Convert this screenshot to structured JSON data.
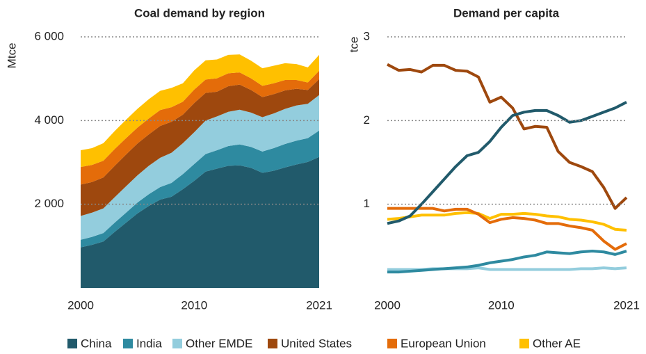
{
  "chart_data": [
    {
      "type": "stacked-area",
      "title": "Coal demand by region",
      "ylabel": "Mtce",
      "x": [
        2000,
        2001,
        2002,
        2003,
        2004,
        2005,
        2006,
        2007,
        2008,
        2009,
        2010,
        2011,
        2012,
        2013,
        2014,
        2015,
        2016,
        2017,
        2018,
        2019,
        2020,
        2021
      ],
      "xlim": [
        2000,
        2021
      ],
      "xticks": [
        2000,
        2010,
        2021
      ],
      "ylim": [
        0,
        6000
      ],
      "yticks": [
        {
          "value": 2000,
          "label": "2 000"
        },
        {
          "value": 4000,
          "label": "4 000"
        },
        {
          "value": 6000,
          "label": "6 000"
        }
      ],
      "grid": true,
      "series": [
        {
          "name": "China",
          "color": "#215a6b",
          "values": [
            970,
            1030,
            1110,
            1340,
            1560,
            1780,
            1960,
            2110,
            2180,
            2360,
            2560,
            2780,
            2850,
            2920,
            2930,
            2870,
            2750,
            2800,
            2880,
            2950,
            3010,
            3130
          ]
        },
        {
          "name": "India",
          "color": "#2e8aa0",
          "values": [
            180,
            190,
            200,
            220,
            240,
            260,
            280,
            300,
            330,
            360,
            400,
            420,
            440,
            470,
            500,
            500,
            510,
            540,
            560,
            570,
            570,
            630
          ]
        },
        {
          "name": "Other EMDE",
          "color": "#93cddd",
          "values": [
            570,
            580,
            590,
            610,
            630,
            650,
            680,
            700,
            720,
            740,
            760,
            800,
            810,
            820,
            830,
            820,
            820,
            830,
            840,
            840,
            820,
            850
          ]
        },
        {
          "name": "United States",
          "color": "#9e480e",
          "values": [
            750,
            730,
            740,
            750,
            760,
            760,
            750,
            760,
            740,
            680,
            700,
            660,
            590,
            610,
            600,
            540,
            480,
            460,
            440,
            400,
            330,
            380
          ]
        },
        {
          "name": "European Union",
          "color": "#e46c0a",
          "values": [
            420,
            410,
            400,
            400,
            390,
            380,
            380,
            380,
            350,
            310,
            320,
            320,
            320,
            310,
            290,
            280,
            270,
            260,
            250,
            210,
            180,
            200
          ]
        },
        {
          "name": "Other AE",
          "color": "#ffc000",
          "values": [
            400,
            400,
            420,
            430,
            440,
            450,
            460,
            460,
            460,
            440,
            460,
            460,
            450,
            440,
            430,
            420,
            420,
            420,
            400,
            380,
            360,
            380
          ]
        }
      ]
    },
    {
      "type": "line",
      "title": "Demand per capita",
      "ylabel": "tce",
      "x": [
        2000,
        2001,
        2002,
        2003,
        2004,
        2005,
        2006,
        2007,
        2008,
        2009,
        2010,
        2011,
        2012,
        2013,
        2014,
        2015,
        2016,
        2017,
        2018,
        2019,
        2020,
        2021
      ],
      "xlim": [
        2000,
        2021
      ],
      "xticks": [
        2000,
        2010,
        2021
      ],
      "ylim": [
        0,
        3
      ],
      "yticks": [
        1,
        2,
        3
      ],
      "grid": true,
      "series": [
        {
          "color": "#93cddd",
          "values": [
            0.22,
            0.22,
            0.22,
            0.22,
            0.23,
            0.23,
            0.23,
            0.23,
            0.24,
            0.22,
            0.22,
            0.22,
            0.22,
            0.22,
            0.22,
            0.22,
            0.22,
            0.23,
            0.23,
            0.24,
            0.23,
            0.24
          ]
        },
        {
          "color": "#2e8aa0",
          "values": [
            0.19,
            0.19,
            0.2,
            0.21,
            0.22,
            0.23,
            0.24,
            0.25,
            0.27,
            0.3,
            0.32,
            0.34,
            0.37,
            0.39,
            0.43,
            0.42,
            0.41,
            0.43,
            0.44,
            0.43,
            0.4,
            0.44
          ]
        },
        {
          "color": "#ffc000",
          "values": [
            0.82,
            0.83,
            0.85,
            0.87,
            0.87,
            0.87,
            0.89,
            0.9,
            0.89,
            0.83,
            0.88,
            0.88,
            0.89,
            0.88,
            0.86,
            0.85,
            0.82,
            0.81,
            0.79,
            0.76,
            0.7,
            0.69
          ]
        },
        {
          "color": "#e46c0a",
          "values": [
            0.95,
            0.95,
            0.95,
            0.95,
            0.95,
            0.92,
            0.94,
            0.94,
            0.88,
            0.78,
            0.82,
            0.84,
            0.83,
            0.81,
            0.77,
            0.77,
            0.74,
            0.72,
            0.69,
            0.56,
            0.46,
            0.53
          ]
        },
        {
          "color": "#9e480e",
          "values": [
            2.67,
            2.6,
            2.61,
            2.58,
            2.66,
            2.66,
            2.6,
            2.59,
            2.52,
            2.22,
            2.28,
            2.15,
            1.9,
            1.93,
            1.92,
            1.63,
            1.5,
            1.45,
            1.39,
            1.2,
            0.95,
            1.08
          ]
        },
        {
          "color": "#215a6b",
          "values": [
            0.77,
            0.8,
            0.86,
            1.0,
            1.15,
            1.3,
            1.45,
            1.58,
            1.62,
            1.75,
            1.92,
            2.06,
            2.1,
            2.12,
            2.12,
            2.06,
            1.98,
            2.0,
            2.05,
            2.1,
            2.15,
            2.22
          ]
        }
      ]
    }
  ]
}
